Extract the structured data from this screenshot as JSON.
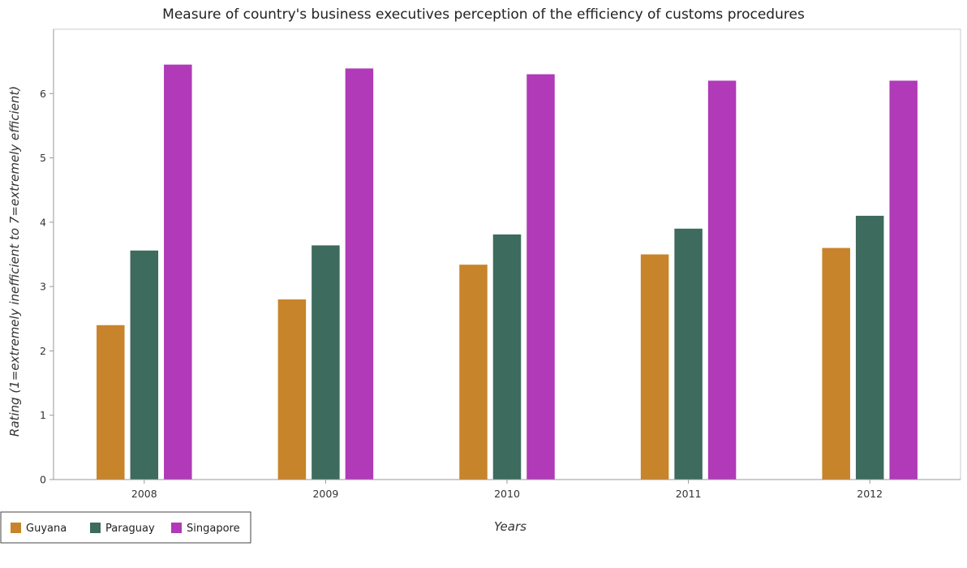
{
  "chart_data": {
    "type": "bar",
    "title": "Measure of country's business executives perception of the efficiency of customs procedures",
    "xlabel": "Years",
    "ylabel": "Rating (1=extremely inefficient to 7=extremely efficient)",
    "categories": [
      "2008",
      "2009",
      "2010",
      "2011",
      "2012"
    ],
    "ylim": [
      0,
      7
    ],
    "yticks": [
      "0",
      "1",
      "2",
      "3",
      "4",
      "5",
      "6"
    ],
    "grid": false,
    "legend_position": "bottom-left",
    "series": [
      {
        "name": "Guyana",
        "color": "#c8842a",
        "values": [
          2.4,
          2.8,
          3.34,
          3.5,
          3.6
        ]
      },
      {
        "name": "Paraguay",
        "color": "#3d6b5e",
        "values": [
          3.56,
          3.64,
          3.81,
          3.9,
          4.1
        ]
      },
      {
        "name": "Singapore",
        "color": "#b03ab8",
        "values": [
          6.45,
          6.39,
          6.3,
          6.2,
          6.2
        ]
      }
    ]
  }
}
